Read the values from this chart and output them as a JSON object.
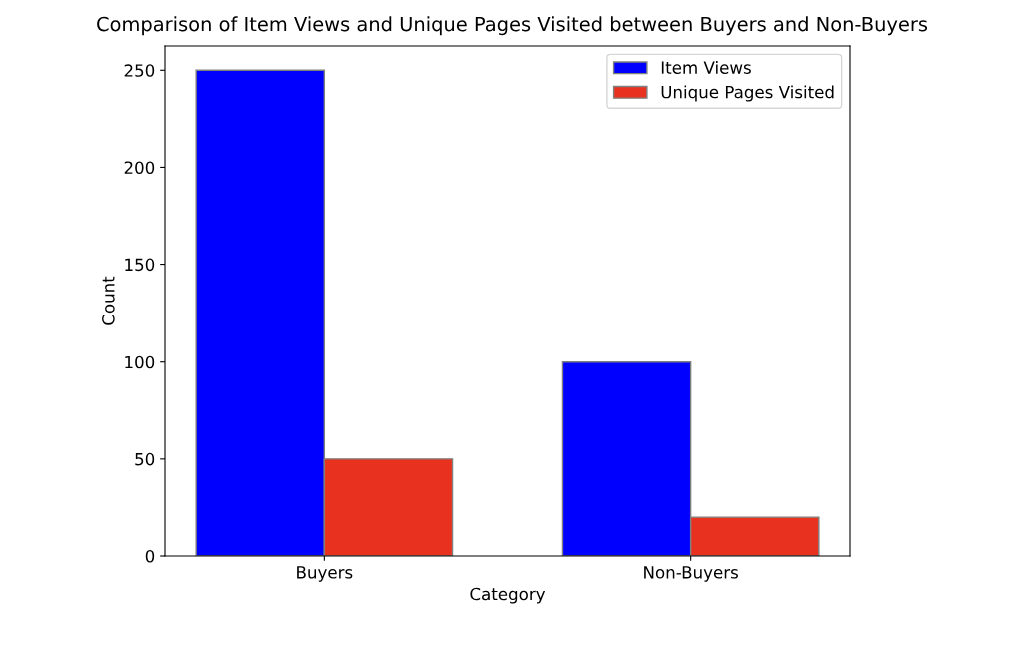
{
  "chart_data": {
    "type": "bar",
    "title": "Comparison of Item Views and Unique Pages Visited between Buyers and Non-Buyers",
    "xlabel": "Category",
    "ylabel": "Count",
    "categories": [
      "Buyers",
      "Non-Buyers"
    ],
    "series": [
      {
        "name": "Item Views",
        "color": "#0000ff",
        "values": [
          250,
          100
        ]
      },
      {
        "name": "Unique Pages Visited",
        "color": "#e8321f",
        "values": [
          50,
          20
        ]
      }
    ],
    "ylim": [
      0,
      262.5
    ],
    "yticks": [
      0,
      50,
      100,
      150,
      200,
      250
    ],
    "grid": false,
    "legend": "top right"
  }
}
